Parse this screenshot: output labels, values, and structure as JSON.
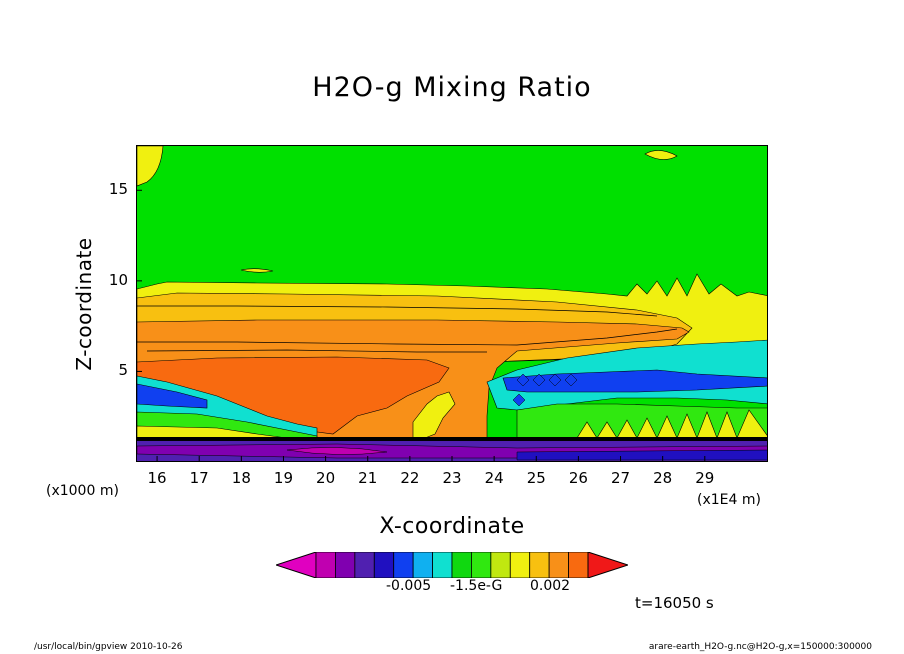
{
  "title": "H2O-g Mixing Ratio",
  "chart_data": {
    "type": "heatmap",
    "title": "H2O-g Mixing Ratio",
    "xlabel": "X-coordinate",
    "ylabel": "Z-coordinate",
    "x_unit": "(x1E4 m)",
    "y_unit": "(x1000 m)",
    "xlim": [
      15.5,
      30.5
    ],
    "ylim": [
      0,
      17.5
    ],
    "x_ticks": [
      16,
      17,
      18,
      19,
      20,
      21,
      22,
      23,
      24,
      25,
      26,
      27,
      28,
      29
    ],
    "y_ticks": [
      5,
      10,
      15
    ],
    "colorbar": {
      "colors": [
        "#e000c0",
        "#c000b0",
        "#8000b0",
        "#5020b0",
        "#2010c0",
        "#1040f0",
        "#10b0f0",
        "#10e0d0",
        "#10d810",
        "#30e810",
        "#c0e810",
        "#f0f010",
        "#f8c010",
        "#f89018",
        "#f86a10",
        "#f01818"
      ],
      "labels": [
        "-0.005",
        "-1.5e-G",
        "0.002"
      ]
    },
    "time_label": "t=16050 s"
  },
  "footer": {
    "left": "/usr/local/bin/gpview  2010-10-26",
    "right": "arare-earth_H2O-g.nc@H2O-g,x=150000:300000"
  }
}
